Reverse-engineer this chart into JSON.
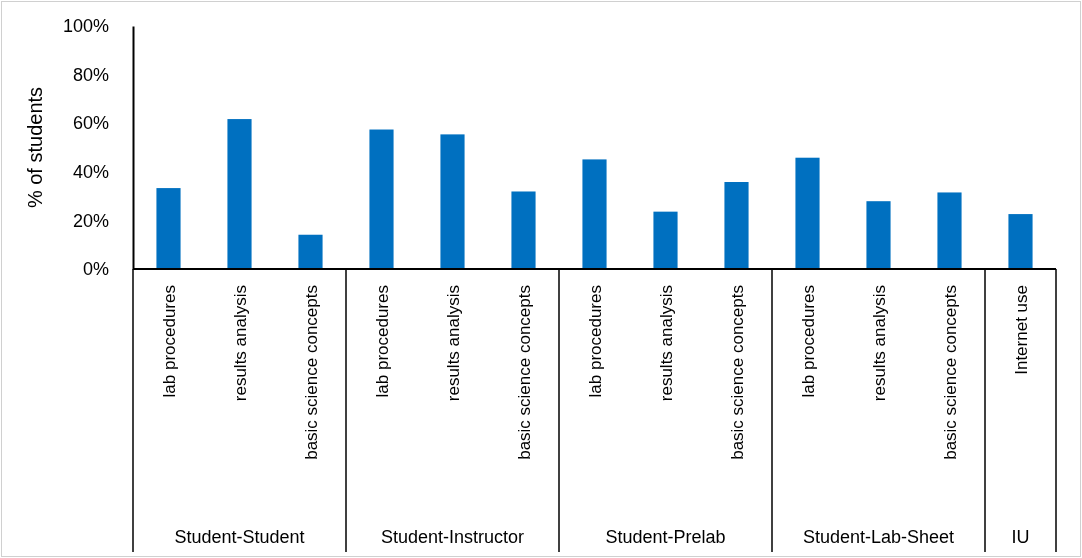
{
  "chart_data": {
    "type": "bar",
    "ylabel": "% of students",
    "categories": [
      "lab procedures",
      "results analysis",
      "basic science concepts",
      "lab procedures",
      "results analysis",
      "basic science concepts",
      "lab procedures",
      "results analysis",
      "basic science concepts",
      "lab procedures",
      "results analysis",
      "basic science concepts",
      "Internet use"
    ],
    "values": [
      33.3,
      61.7,
      14.1,
      57.4,
      55.4,
      31.9,
      45.1,
      23.6,
      35.8,
      45.8,
      27.9,
      31.5,
      22.6
    ],
    "color": "#0070c0",
    "ylim": [
      0,
      100
    ],
    "yticks": [
      {
        "value": 0,
        "label": "0%"
      },
      {
        "value": 20,
        "label": "20%"
      },
      {
        "value": 40,
        "label": "40%"
      },
      {
        "value": 60,
        "label": "60%"
      },
      {
        "value": 80,
        "label": "80%"
      },
      {
        "value": 100,
        "label": "100%"
      }
    ],
    "annotations": [
      "Student-Student",
      "Student-Instructor",
      "Student-Prelab",
      "Student-Lab-Sheet",
      "IU"
    ],
    "grid": false
  }
}
